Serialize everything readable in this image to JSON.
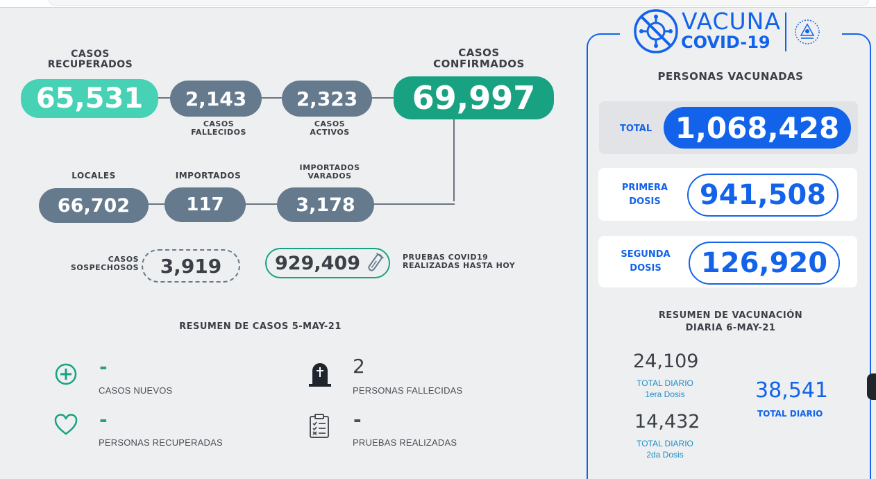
{
  "stats": {
    "recuperados": {
      "label_line1": "CASOS",
      "label_line2": "RECUPERADOS",
      "value": "65,531"
    },
    "fallecidos": {
      "label_line1": "CASOS",
      "label_line2": "FALLECIDOS",
      "value": "2,143"
    },
    "activos": {
      "label_line1": "CASOS",
      "label_line2": "ACTIVOS",
      "value": "2,323"
    },
    "confirmados": {
      "label_line1": "CASOS",
      "label_line2": "CONFIRMADOS",
      "value": "69,997"
    },
    "locales": {
      "label": "LOCALES",
      "value": "66,702"
    },
    "importados": {
      "label": "IMPORTADOS",
      "value": "117"
    },
    "varados": {
      "label_line1": "IMPORTADOS",
      "label_line2": "VARADOS",
      "value": "3,178"
    },
    "sospechosos": {
      "label_line1": "CASOS",
      "label_line2": "SOSPECHOSOS",
      "value": "3,919"
    },
    "pruebas": {
      "label_line1": "PRUEBAS COVID19",
      "label_line2": "REALIZADAS HASTA HOY",
      "value": "929,409"
    }
  },
  "resumen": {
    "title": "RESUMEN DE CASOS 5-MAY-21",
    "items": [
      {
        "icon": "plus-circle-icon",
        "value": "-",
        "label": "CASOS NUEVOS"
      },
      {
        "icon": "tombstone-icon",
        "value": "2",
        "label": "PERSONAS FALLECIDAS"
      },
      {
        "icon": "heart-icon",
        "value": "-",
        "label": "PERSONAS RECUPERADAS"
      },
      {
        "icon": "clipboard-checklist-icon",
        "value": "-",
        "label": "PRUEBAS REALIZADAS"
      }
    ]
  },
  "vacuna": {
    "logo_word1": "VACUNA",
    "logo_word2": "COVID-19",
    "title": "PERSONAS VACUNADAS",
    "total_label": "TOTAL",
    "total_value": "1,068,428",
    "primera_label_1": "PRIMERA",
    "primera_label_2": "DOSIS",
    "primera_value": "941,508",
    "segunda_label_1": "SEGUNDA",
    "segunda_label_2": "DOSIS",
    "segunda_value": "126,920",
    "resumen_title_1": "RESUMEN DE VACUNACIÓN",
    "resumen_title_2": "DIARIA 6-MAY-21",
    "daily_1_value": "24,109",
    "daily_1_label_1": "TOTAL DIARIO",
    "daily_1_label_2": "1era Dosis",
    "daily_2_value": "14,432",
    "daily_2_label_1": "TOTAL DIARIO",
    "daily_2_label_2": "2da Dosis",
    "daily_total_value": "38,541",
    "daily_total_label": "TOTAL DIARIO"
  },
  "colors": {
    "green_light": "#47d2b5",
    "slate": "#667a8e",
    "teal": "#18a282",
    "blue": "#1263ea"
  }
}
